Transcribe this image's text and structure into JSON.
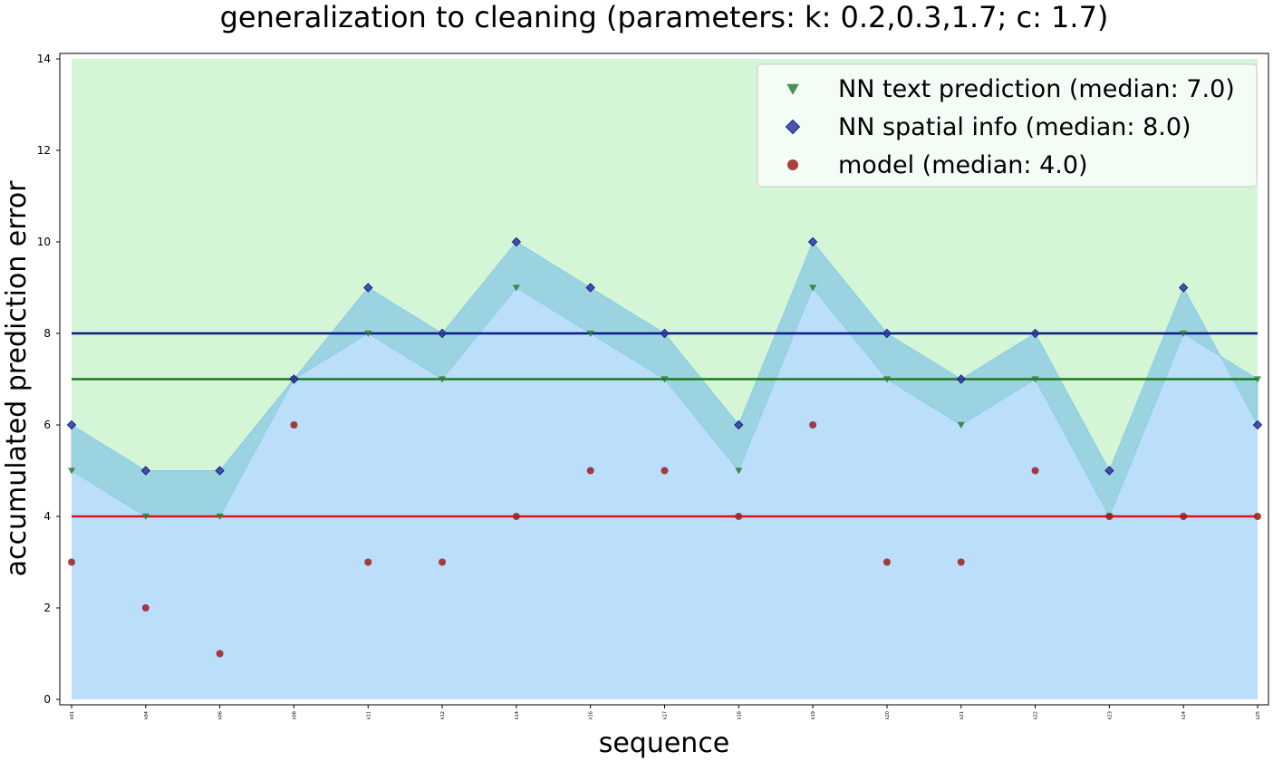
{
  "chart_data": {
    "type": "scatter",
    "title": "generalization to cleaning (parameters: k: 0.2,0.3,1.7; c: 1.7)",
    "xlabel": "sequence",
    "ylabel": "accumulated prediction error",
    "ylim": [
      0,
      14
    ],
    "yticks": [
      "0",
      "2",
      "4",
      "6",
      "8",
      "10",
      "12",
      "14"
    ],
    "categories": [
      "k01",
      "k04",
      "k06",
      "k08",
      "k11",
      "k12",
      "k14",
      "k16",
      "k17",
      "k18",
      "k19",
      "k20",
      "k21",
      "k22",
      "k23",
      "k24",
      "k25"
    ],
    "grid": false,
    "legend_position": "top-right",
    "background_fill": {
      "top": 14,
      "color": "#d4f5d6"
    },
    "area_fill_color": "#bbdefb",
    "band_fill_color": "#9bd3e0",
    "series": [
      {
        "name": "NN text prediction (median: 7.0)",
        "marker": "triangle-down",
        "color": "#2e7d32",
        "median": 7.0,
        "median_color": "#1b7a1b",
        "values": [
          5,
          4,
          4,
          7,
          8,
          7,
          9,
          8,
          7,
          5,
          9,
          7,
          6,
          7,
          4,
          8,
          7
        ]
      },
      {
        "name": "NN spatial info (median: 8.0)",
        "marker": "diamond",
        "color": "#1a237e",
        "median": 8.0,
        "median_color": "#0d1b8c",
        "values": [
          6,
          5,
          5,
          7,
          9,
          8,
          10,
          9,
          8,
          6,
          10,
          8,
          7,
          8,
          5,
          9,
          6
        ]
      },
      {
        "name": "model (median: 4.0)",
        "marker": "circle",
        "color": "#8b1a1a",
        "median": 4.0,
        "median_color": "#e0121e",
        "values": [
          3,
          2,
          1,
          6,
          3,
          3,
          4,
          5,
          5,
          4,
          6,
          3,
          3,
          5,
          4,
          4,
          4
        ]
      }
    ]
  }
}
